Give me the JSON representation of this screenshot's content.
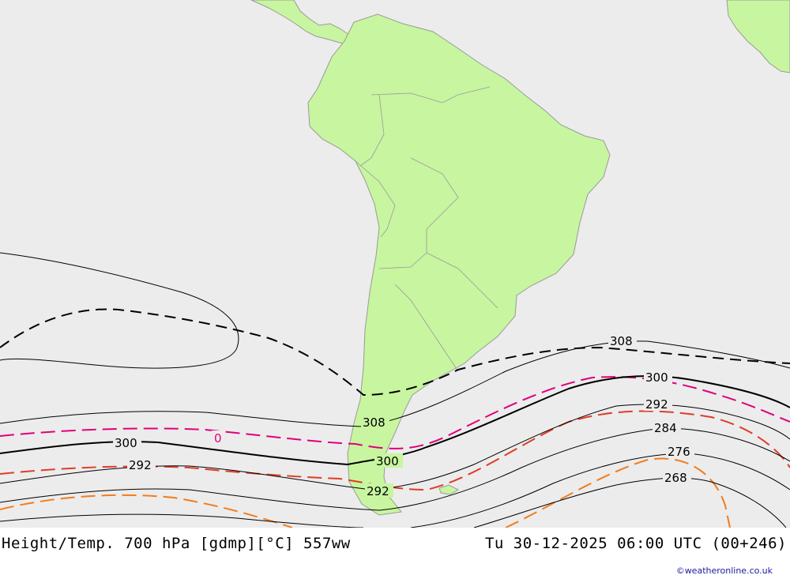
{
  "caption": {
    "left": "Height/Temp. 700 hPa [gdmp][°C] 557ww",
    "right": "Tu 30-12-2025 06:00 UTC (00+246)"
  },
  "credit": "©weatheronline.co.uk",
  "colors": {
    "ocean": "#ececec",
    "land": "#c8f5a0",
    "coast": "#9a9a9a",
    "height_contour": "#000000",
    "temp_0": "#e0007a",
    "temp_negative": "#e03c28",
    "temp_cold": "#f07d1e"
  },
  "height_labels": [
    "308",
    "300",
    "292",
    "284",
    "276",
    "268",
    "308",
    "300",
    "292",
    "300",
    "292"
  ],
  "temp_labels": [
    "0"
  ]
}
